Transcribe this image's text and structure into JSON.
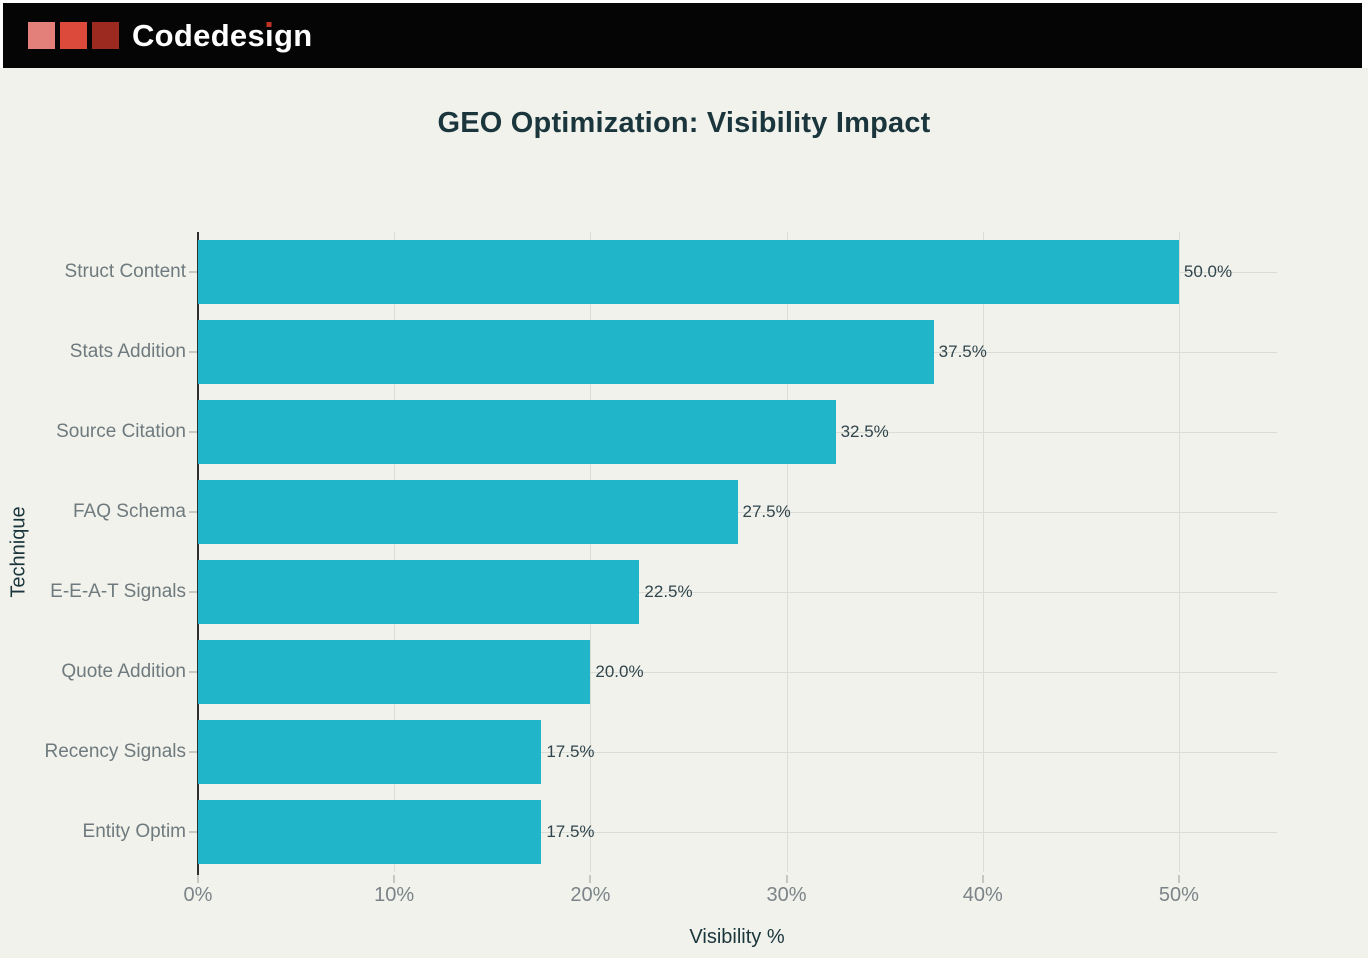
{
  "header": {
    "brand": "Codedesign",
    "brand_parts": {
      "before": "Codedes",
      "i": "ı",
      "after": "gn"
    },
    "logo_squares": [
      "#e28079",
      "#dc4a3b",
      "#9c2a20"
    ]
  },
  "chart_data": {
    "type": "bar",
    "orientation": "horizontal",
    "title": "GEO Optimization: Visibility Impact",
    "categories": [
      "Struct Content",
      "Stats Addition",
      "Source Citation",
      "FAQ Schema",
      "E-E-A-T Signals",
      "Quote Addition",
      "Recency Signals",
      "Entity Optim"
    ],
    "values": [
      50.0,
      37.5,
      32.5,
      27.5,
      22.5,
      20.0,
      17.5,
      17.5
    ],
    "value_labels": [
      "50.0%",
      "37.5%",
      "32.5%",
      "27.5%",
      "22.5%",
      "20.0%",
      "17.5%",
      "17.5%"
    ],
    "xlabel": "Visibility %",
    "ylabel": "Technique",
    "xlim": [
      0,
      55
    ],
    "xticks": [
      0,
      10,
      20,
      30,
      40,
      50
    ],
    "xtick_labels": [
      "0%",
      "10%",
      "20%",
      "30%",
      "40%",
      "50%"
    ],
    "grid": true,
    "legend": "none"
  },
  "colors": {
    "background": "#f1f2ec",
    "header_bg": "#050505",
    "bar": "#20b5c9",
    "title_text": "#1a363c",
    "axis_title_text": "#1a363c",
    "tick_label_text": "#7c8488",
    "category_label_text": "#6f7a7e",
    "value_label_text": "#31454d",
    "gridline": "#dbdcd4",
    "spine": "#303030",
    "brand_text": "#ffffff",
    "brand_dot": "#c13325"
  }
}
